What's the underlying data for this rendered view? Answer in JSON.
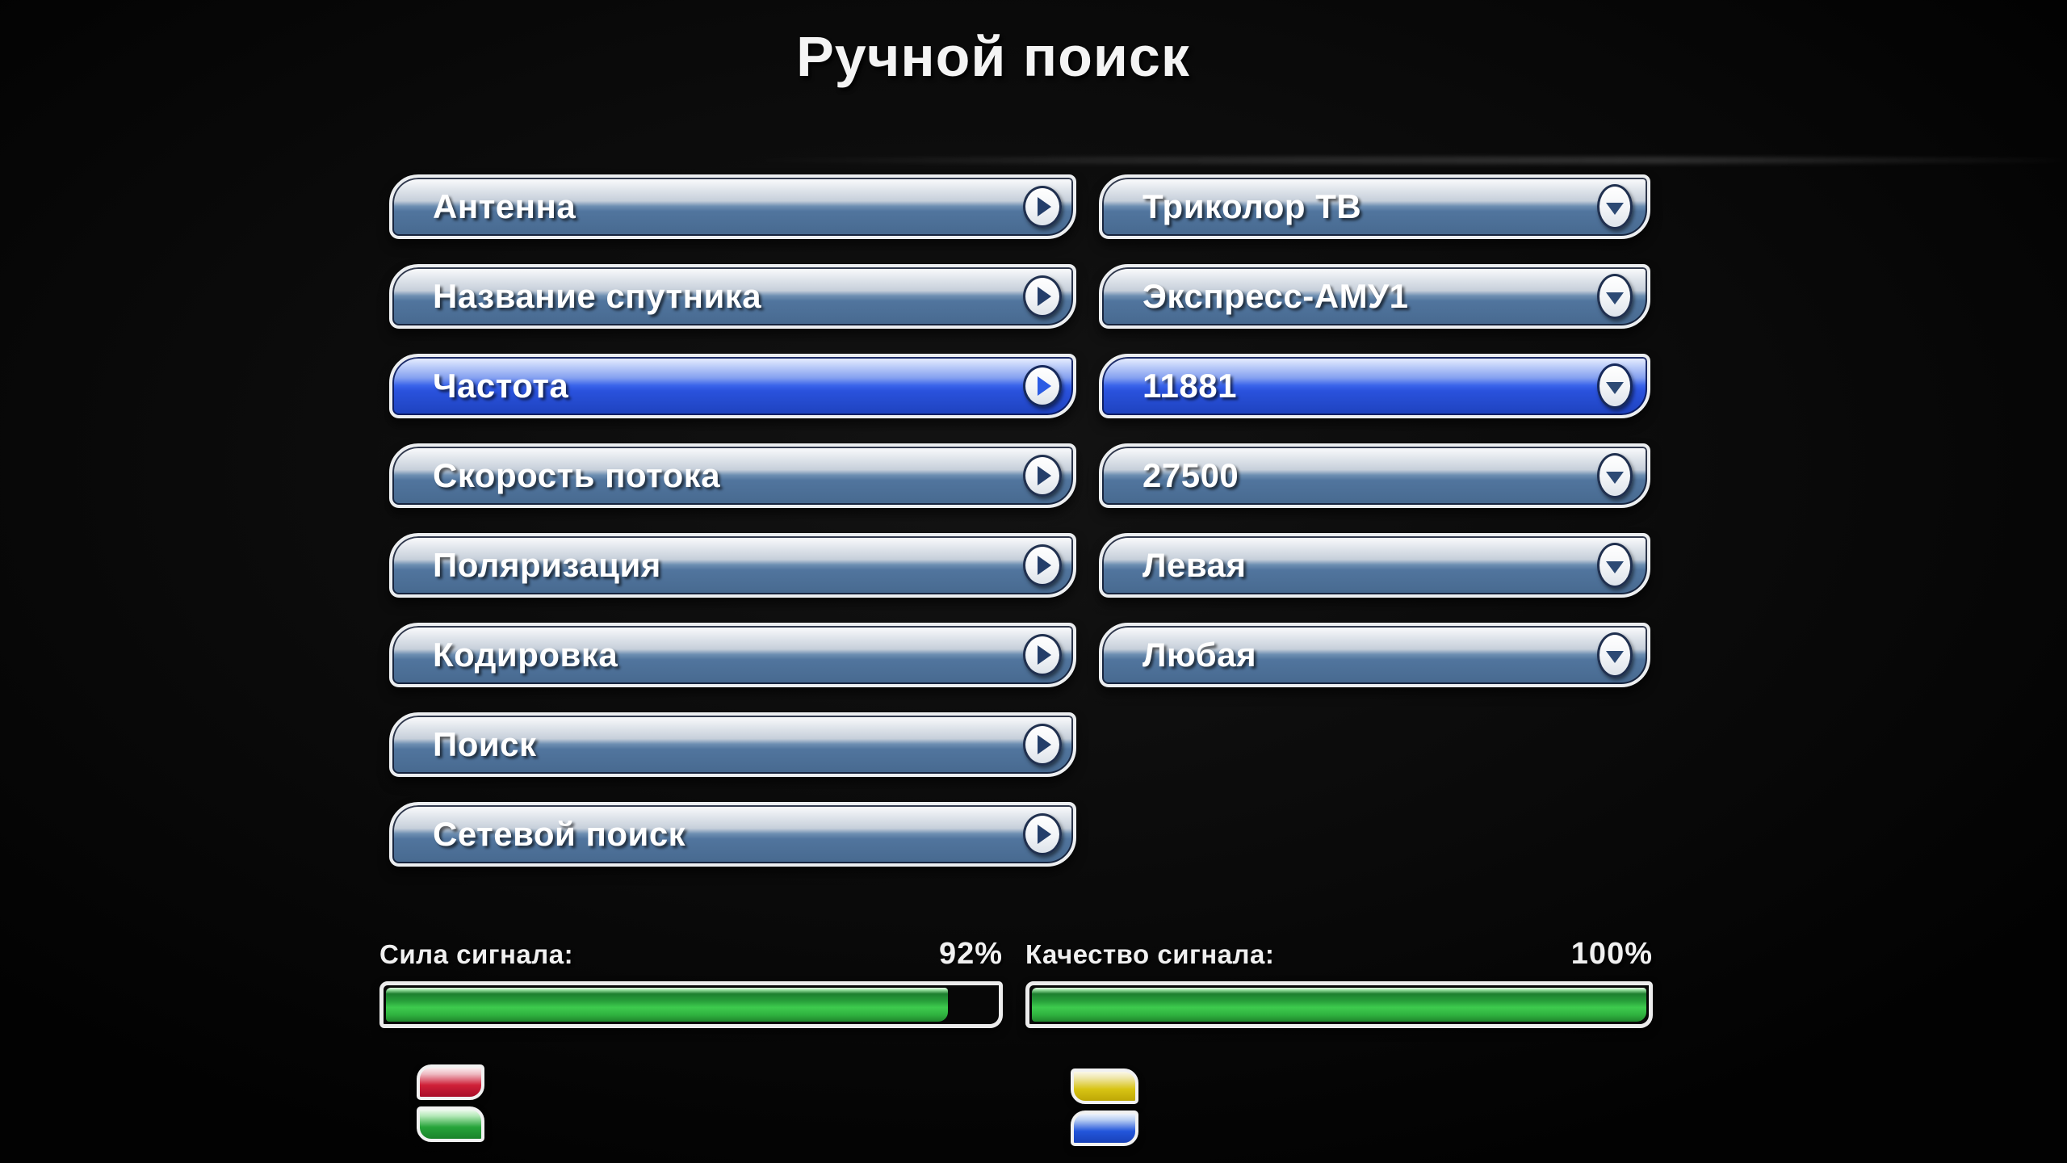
{
  "title": "Ручной поиск",
  "colors": {
    "selected-blue": "#2a52dd",
    "button-steel": "#51759e",
    "bar-green": "#3ecb4e",
    "chip-red": "#cf2038",
    "chip-green": "#27a43a",
    "chip-yellow": "#d8c414",
    "chip-blue": "#2356db"
  },
  "form": {
    "rows": [
      {
        "label": "Антенна",
        "value": "Триколор ТВ",
        "selected": false
      },
      {
        "label": "Название спутника",
        "value": "Экспресс-АМУ1",
        "selected": false
      },
      {
        "label": "Частота",
        "value": "11881",
        "selected": true
      },
      {
        "label": "Скорость потока",
        "value": "27500",
        "selected": false
      },
      {
        "label": "Поляризация",
        "value": "Левая",
        "selected": false
      },
      {
        "label": "Кодировка",
        "value": "Любая",
        "selected": false
      },
      {
        "label": "Поиск",
        "value": null,
        "selected": false
      },
      {
        "label": "Сетевой поиск",
        "value": null,
        "selected": false
      }
    ]
  },
  "signals": [
    {
      "label": "Сила сигнала:",
      "percent": 92,
      "percent_label": "92%"
    },
    {
      "label": "Качество сигнала:",
      "percent": 100,
      "percent_label": "100%"
    }
  ],
  "remote_hints": [
    {
      "buttons": [
        "red",
        "green"
      ]
    },
    {
      "buttons": [
        "yellow",
        "blue"
      ]
    }
  ]
}
